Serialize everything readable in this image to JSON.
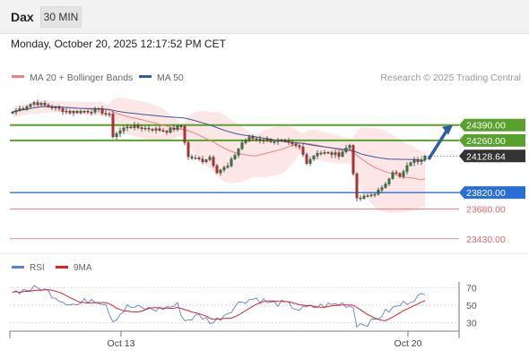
{
  "header": {
    "instrument": "Dax",
    "timeframe": "30 MIN",
    "datetime": "Monday, October 20, 2025 12:17:52 PM CET"
  },
  "legend": {
    "ma20_label": "MA 20 + Bollinger Bands",
    "ma50_label": "MA 50",
    "credit": "Research © 2025 Trading Central",
    "rsi_label": "RSI",
    "rsi_ma_label": "9MA"
  },
  "colors": {
    "up": "#2e7d32",
    "down": "#c62828",
    "ma20": "#f08080",
    "bands": "#fde2e2",
    "ma50": "#3a5a98",
    "resistance": "#5aa02c",
    "support": "#2a6fd6",
    "target": "#e06666",
    "arrow": "#2f5da8",
    "rsi": "#5b7fdb",
    "rsi_ma": "#e02020"
  },
  "chart_data": [
    {
      "type": "candlestick",
      "y_range": [
        23330,
        24690
      ],
      "x_ticks": [
        "Oct 13",
        "Oct 20"
      ],
      "last_price": 24128.64,
      "levels": [
        {
          "value": 24390,
          "label": "24390.00",
          "kind": "resistance"
        },
        {
          "value": 24260,
          "label": "24260.00",
          "kind": "resistance"
        },
        {
          "value": 23820,
          "label": "23820.00",
          "kind": "pivot"
        },
        {
          "value": 23680,
          "label": "23680.00",
          "kind": "support"
        },
        {
          "value": 23430,
          "label": "23430.00",
          "kind": "support"
        }
      ],
      "forecast": {
        "from": 24100,
        "to": 24390
      },
      "anchors": [
        {
          "i": 0,
          "c": 24500
        },
        {
          "i": 6,
          "c": 24580
        },
        {
          "i": 16,
          "c": 24500
        },
        {
          "i": 24,
          "c": 24515
        },
        {
          "i": 27,
          "c": 24470
        },
        {
          "i": 28,
          "c": 24300
        },
        {
          "i": 32,
          "c": 24380
        },
        {
          "i": 38,
          "c": 24360
        },
        {
          "i": 43,
          "c": 24340
        },
        {
          "i": 47,
          "c": 24380
        },
        {
          "i": 49,
          "c": 24120
        },
        {
          "i": 53,
          "c": 24090
        },
        {
          "i": 55,
          "c": 24120
        },
        {
          "i": 57,
          "c": 24000
        },
        {
          "i": 60,
          "c": 24040
        },
        {
          "i": 64,
          "c": 24240
        },
        {
          "i": 66,
          "c": 24280
        },
        {
          "i": 72,
          "c": 24260
        },
        {
          "i": 75,
          "c": 24250
        },
        {
          "i": 80,
          "c": 24200
        },
        {
          "i": 82,
          "c": 24080
        },
        {
          "i": 85,
          "c": 24160
        },
        {
          "i": 91,
          "c": 24140
        },
        {
          "i": 94,
          "c": 24220
        },
        {
          "i": 96,
          "c": 23760
        },
        {
          "i": 100,
          "c": 23800
        },
        {
          "i": 103,
          "c": 23850
        },
        {
          "i": 106,
          "c": 24000
        },
        {
          "i": 108,
          "c": 23950
        },
        {
          "i": 111,
          "c": 24080
        },
        {
          "i": 113,
          "c": 24090
        },
        {
          "i": 115,
          "c": 24128.64
        }
      ]
    },
    {
      "type": "line",
      "title": "RSI",
      "y_range": [
        20,
        80
      ],
      "y_ticks": [
        70,
        50,
        30
      ],
      "anchors": [
        {
          "i": 0,
          "v": 65
        },
        {
          "i": 4,
          "v": 68
        },
        {
          "i": 8,
          "v": 70
        },
        {
          "i": 14,
          "v": 55
        },
        {
          "i": 18,
          "v": 50
        },
        {
          "i": 22,
          "v": 58
        },
        {
          "i": 26,
          "v": 52
        },
        {
          "i": 28,
          "v": 32
        },
        {
          "i": 32,
          "v": 48
        },
        {
          "i": 40,
          "v": 45
        },
        {
          "i": 46,
          "v": 50
        },
        {
          "i": 48,
          "v": 32
        },
        {
          "i": 52,
          "v": 38
        },
        {
          "i": 56,
          "v": 30
        },
        {
          "i": 60,
          "v": 42
        },
        {
          "i": 64,
          "v": 55
        },
        {
          "i": 68,
          "v": 58
        },
        {
          "i": 72,
          "v": 52
        },
        {
          "i": 76,
          "v": 52
        },
        {
          "i": 80,
          "v": 45
        },
        {
          "i": 84,
          "v": 48
        },
        {
          "i": 88,
          "v": 50
        },
        {
          "i": 92,
          "v": 52
        },
        {
          "i": 95,
          "v": 48
        },
        {
          "i": 96,
          "v": 28
        },
        {
          "i": 100,
          "v": 30
        },
        {
          "i": 104,
          "v": 42
        },
        {
          "i": 108,
          "v": 50
        },
        {
          "i": 112,
          "v": 58
        },
        {
          "i": 115,
          "v": 62
        }
      ]
    }
  ]
}
